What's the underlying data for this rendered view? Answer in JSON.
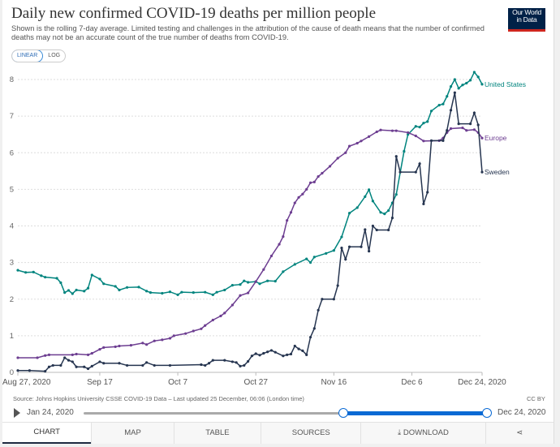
{
  "header": {
    "title": "Daily new confirmed COVID-19 deaths per million people",
    "subtitle": "Shown is the rolling 7-day average. Limited testing and challenges in the attribution of the cause of death means that the number of confirmed deaths may not be an accurate count of the true number of deaths from COVID-19.",
    "logo_line1": "Our World",
    "logo_line2": "in Data"
  },
  "scale_toggle": {
    "linear": "LINEAR",
    "log": "LOG",
    "selected": "LINEAR"
  },
  "chart_data": {
    "type": "line",
    "title": "Daily new confirmed COVID-19 deaths per million people",
    "xlabel": "",
    "ylabel": "",
    "x_unit": "days since Aug 27, 2020",
    "xlim": [
      0,
      119
    ],
    "ylim": [
      0,
      8
    ],
    "grid": "horizontal dotted",
    "legend": "inline labels at right end of lines",
    "y_ticks": [
      0,
      1,
      2,
      3,
      4,
      5,
      6,
      7,
      8
    ],
    "x_ticks": [
      {
        "x": 0,
        "label": "Aug 27, 2020"
      },
      {
        "x": 21,
        "label": "Sep 17"
      },
      {
        "x": 41,
        "label": "Oct 7"
      },
      {
        "x": 61,
        "label": "Oct 27"
      },
      {
        "x": 81,
        "label": "Nov 16"
      },
      {
        "x": 101,
        "label": "Dec 6"
      },
      {
        "x": 119,
        "label": "Dec 24, 2020"
      }
    ],
    "series": [
      {
        "name": "United States",
        "color": "#00847e",
        "points": [
          [
            0,
            2.79
          ],
          [
            2,
            2.73
          ],
          [
            4,
            2.74
          ],
          [
            6,
            2.64
          ],
          [
            7,
            2.6
          ],
          [
            10,
            2.57
          ],
          [
            11,
            2.45
          ],
          [
            12,
            2.18
          ],
          [
            13,
            2.24
          ],
          [
            14,
            2.15
          ],
          [
            15,
            2.25
          ],
          [
            17,
            2.22
          ],
          [
            18,
            2.3
          ],
          [
            19,
            2.66
          ],
          [
            21,
            2.55
          ],
          [
            22,
            2.42
          ],
          [
            25,
            2.35
          ],
          [
            26,
            2.25
          ],
          [
            28,
            2.32
          ],
          [
            31,
            2.33
          ],
          [
            33,
            2.22
          ],
          [
            34,
            2.18
          ],
          [
            37,
            2.16
          ],
          [
            39,
            2.2
          ],
          [
            41,
            2.12
          ],
          [
            42,
            2.19
          ],
          [
            45,
            2.18
          ],
          [
            48,
            2.19
          ],
          [
            50,
            2.12
          ],
          [
            51,
            2.19
          ],
          [
            53,
            2.25
          ],
          [
            55,
            2.38
          ],
          [
            57,
            2.4
          ],
          [
            58,
            2.5
          ],
          [
            59,
            2.46
          ],
          [
            61,
            2.48
          ],
          [
            62,
            2.42
          ],
          [
            64,
            2.5
          ],
          [
            66,
            2.49
          ],
          [
            68,
            2.75
          ],
          [
            71,
            2.95
          ],
          [
            74,
            3.1
          ],
          [
            75,
            3.0
          ],
          [
            76,
            3.15
          ],
          [
            79,
            3.25
          ],
          [
            81,
            3.33
          ],
          [
            83,
            3.7
          ],
          [
            85,
            4.35
          ],
          [
            87,
            4.5
          ],
          [
            89,
            4.8
          ],
          [
            90,
            4.99
          ],
          [
            91,
            4.68
          ],
          [
            93,
            4.37
          ],
          [
            94,
            4.33
          ],
          [
            95,
            4.42
          ],
          [
            96,
            4.63
          ],
          [
            97,
            4.86
          ],
          [
            99,
            6.04
          ],
          [
            100,
            6.5
          ],
          [
            102,
            6.72
          ],
          [
            103,
            6.7
          ],
          [
            104,
            6.81
          ],
          [
            105,
            6.85
          ],
          [
            106,
            7.14
          ],
          [
            108,
            7.3
          ],
          [
            109,
            7.33
          ],
          [
            110,
            7.54
          ],
          [
            111,
            7.81
          ],
          [
            112,
            8.0
          ],
          [
            113,
            7.76
          ],
          [
            114,
            7.85
          ],
          [
            115,
            7.9
          ],
          [
            116,
            7.98
          ],
          [
            117,
            8.2
          ],
          [
            118,
            8.07
          ],
          [
            119,
            7.87
          ]
        ]
      },
      {
        "name": "Europe",
        "color": "#6d3e91",
        "points": [
          [
            0,
            0.4
          ],
          [
            5,
            0.4
          ],
          [
            7,
            0.46
          ],
          [
            8,
            0.48
          ],
          [
            14,
            0.48
          ],
          [
            15,
            0.5
          ],
          [
            18,
            0.48
          ],
          [
            19,
            0.52
          ],
          [
            21,
            0.63
          ],
          [
            22,
            0.68
          ],
          [
            25,
            0.7
          ],
          [
            26,
            0.72
          ],
          [
            29,
            0.74
          ],
          [
            32,
            0.8
          ],
          [
            33,
            0.76
          ],
          [
            35,
            0.86
          ],
          [
            37,
            0.89
          ],
          [
            39,
            0.93
          ],
          [
            40,
            1.0
          ],
          [
            43,
            1.06
          ],
          [
            45,
            1.13
          ],
          [
            47,
            1.19
          ],
          [
            48,
            1.28
          ],
          [
            50,
            1.43
          ],
          [
            52,
            1.54
          ],
          [
            53,
            1.62
          ],
          [
            55,
            1.84
          ],
          [
            57,
            2.1
          ],
          [
            59,
            2.17
          ],
          [
            61,
            2.48
          ],
          [
            63,
            2.81
          ],
          [
            65,
            3.18
          ],
          [
            67,
            3.5
          ],
          [
            68,
            3.71
          ],
          [
            69,
            4.15
          ],
          [
            70,
            4.37
          ],
          [
            71,
            4.63
          ],
          [
            72,
            4.78
          ],
          [
            73,
            4.87
          ],
          [
            74,
            5.0
          ],
          [
            75,
            5.18
          ],
          [
            76,
            5.2
          ],
          [
            77,
            5.35
          ],
          [
            78,
            5.44
          ],
          [
            80,
            5.63
          ],
          [
            82,
            5.85
          ],
          [
            84,
            6.0
          ],
          [
            85,
            6.18
          ],
          [
            87,
            6.26
          ],
          [
            88,
            6.32
          ],
          [
            90,
            6.44
          ],
          [
            92,
            6.57
          ],
          [
            93,
            6.62
          ],
          [
            96,
            6.6
          ],
          [
            97,
            6.6
          ],
          [
            100,
            6.55
          ],
          [
            102,
            6.46
          ],
          [
            104,
            6.32
          ],
          [
            108,
            6.33
          ],
          [
            109,
            6.4
          ],
          [
            110,
            6.55
          ],
          [
            111,
            6.66
          ],
          [
            114,
            6.68
          ],
          [
            115,
            6.61
          ],
          [
            117,
            6.63
          ],
          [
            118,
            6.55
          ],
          [
            119,
            6.4
          ]
        ]
      },
      {
        "name": "Sweden",
        "color": "#263550",
        "points": [
          [
            0,
            0.05
          ],
          [
            3,
            0.05
          ],
          [
            7,
            0.03
          ],
          [
            8,
            0.15
          ],
          [
            9,
            0.19
          ],
          [
            11,
            0.19
          ],
          [
            12,
            0.4
          ],
          [
            13,
            0.33
          ],
          [
            14,
            0.29
          ],
          [
            15,
            0.15
          ],
          [
            17,
            0.15
          ],
          [
            18,
            0.1
          ],
          [
            19,
            0.17
          ],
          [
            21,
            0.29
          ],
          [
            22,
            0.25
          ],
          [
            26,
            0.25
          ],
          [
            28,
            0.19
          ],
          [
            32,
            0.19
          ],
          [
            33,
            0.27
          ],
          [
            35,
            0.19
          ],
          [
            39,
            0.19
          ],
          [
            47,
            0.21
          ],
          [
            48,
            0.19
          ],
          [
            49,
            0.25
          ],
          [
            50,
            0.33
          ],
          [
            53,
            0.33
          ],
          [
            55,
            0.29
          ],
          [
            56,
            0.27
          ],
          [
            57,
            0.17
          ],
          [
            58,
            0.19
          ],
          [
            59,
            0.3
          ],
          [
            60,
            0.45
          ],
          [
            61,
            0.51
          ],
          [
            62,
            0.47
          ],
          [
            63,
            0.52
          ],
          [
            64,
            0.56
          ],
          [
            65,
            0.6
          ],
          [
            66,
            0.55
          ],
          [
            68,
            0.45
          ],
          [
            69,
            0.48
          ],
          [
            70,
            0.5
          ],
          [
            71,
            0.72
          ],
          [
            72,
            0.64
          ],
          [
            73,
            0.59
          ],
          [
            74,
            0.48
          ],
          [
            75,
            0.96
          ],
          [
            76,
            1.2
          ],
          [
            77,
            1.7
          ],
          [
            78,
            2.0
          ],
          [
            81,
            2.0
          ],
          [
            82,
            2.37
          ],
          [
            83,
            3.4
          ],
          [
            84,
            3.09
          ],
          [
            85,
            3.43
          ],
          [
            88,
            3.43
          ],
          [
            89,
            3.9
          ],
          [
            90,
            3.31
          ],
          [
            91,
            4.0
          ],
          [
            92,
            3.89
          ],
          [
            95,
            3.89
          ],
          [
            96,
            4.22
          ],
          [
            97,
            5.9
          ],
          [
            98,
            5.47
          ],
          [
            102,
            5.47
          ],
          [
            103,
            5.7
          ],
          [
            104,
            4.6
          ],
          [
            105,
            4.92
          ],
          [
            106,
            6.33
          ],
          [
            109,
            6.33
          ],
          [
            110,
            6.61
          ],
          [
            111,
            7.16
          ],
          [
            112,
            7.64
          ],
          [
            113,
            6.79
          ],
          [
            116,
            6.79
          ],
          [
            117,
            7.09
          ],
          [
            118,
            6.76
          ],
          [
            119,
            5.47
          ]
        ]
      }
    ]
  },
  "footer": {
    "source": "Source: Johns Hopkins University CSSE COVID-19 Data – Last updated 25 December, 06:06 (London time)",
    "license": "CC BY"
  },
  "timeline": {
    "start_label": "Jan 24, 2020",
    "end_label": "Dec 24, 2020",
    "selection_start_fraction": 0.644,
    "selection_end_fraction": 1.0
  },
  "tabs": [
    {
      "label": "CHART",
      "active": true
    },
    {
      "label": "MAP"
    },
    {
      "label": "TABLE"
    },
    {
      "label": "SOURCES"
    },
    {
      "label": "⤓ DOWNLOAD"
    },
    {
      "label": "⋖"
    }
  ]
}
